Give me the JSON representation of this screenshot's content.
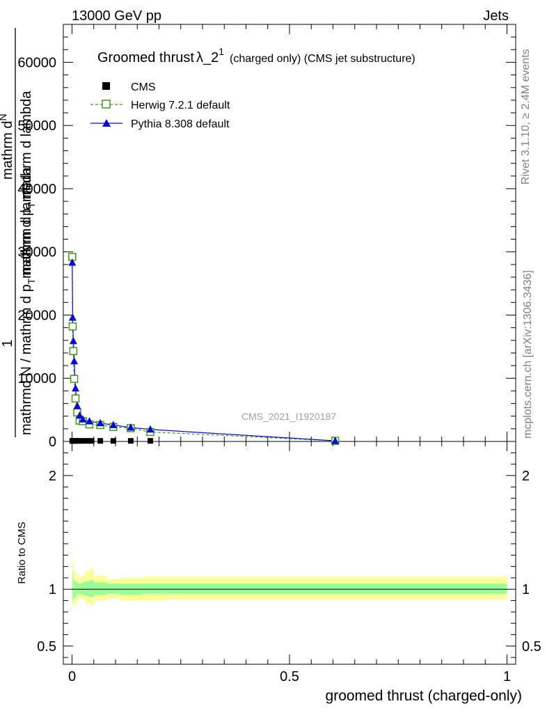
{
  "header": {
    "left": "13000 GeV pp",
    "right": "Jets"
  },
  "side_text": {
    "rivet": "Rivet 3.1.10, ≥ 2.4M events",
    "mcplots": "mcplots.cern.ch [arXiv:1306.3436]"
  },
  "watermark": "CMS_2021_I1920187",
  "main_title": {
    "prefix": "Groomed thrust",
    "lambda": "λ_2",
    "sup": "1",
    "suffix": "(charged only) (CMS jet substructure)"
  },
  "y_axis_upper": {
    "numerator_1": "1",
    "fraction_top": "mathrm d",
    "sup_N": "N",
    "denominator": "mathrm d p",
    "sub_T": "T",
    "denominator_rest": "mathrm d lambda",
    "left_part": "mathrmd N / mathrm d p",
    "left_sub": "T",
    "left_rest": "mathrm d lambda"
  },
  "y_axis_lower_label": "Ratio to CMS",
  "x_axis_label": "groomed thrust (charged-only)",
  "colors": {
    "cms": "#000000",
    "herwig": "#3a9a1a",
    "pythia": "#0a0ad6",
    "band_outer": "#ffff99",
    "band_inner": "#99ff99"
  },
  "chart_data": [
    {
      "type": "line",
      "panel": "main",
      "xlim": [
        -0.02,
        1.02
      ],
      "ylim": [
        0,
        66000
      ],
      "y_ticks": [
        0,
        10000,
        20000,
        30000,
        40000,
        50000,
        60000
      ],
      "y_tick_labels": [
        "0",
        "10000",
        "20000",
        "30000",
        "40000",
        "50000",
        "60000"
      ],
      "legend_position": "top-left",
      "series": [
        {
          "name": "CMS",
          "marker": "filled-square",
          "x": [
            0.0005,
            0.0015,
            0.003,
            0.005,
            0.008,
            0.012,
            0.0175,
            0.025,
            0.035,
            0.045,
            0.065,
            0.095,
            0.135,
            0.18
          ],
          "y": [
            90,
            90,
            90,
            90,
            90,
            90,
            90,
            90,
            90,
            90,
            90,
            90,
            90,
            90
          ]
        },
        {
          "name": "Herwig 7.2.1 default",
          "marker": "open-square",
          "line": "dashed",
          "x": [
            0.0005,
            0.0015,
            0.003,
            0.005,
            0.008,
            0.012,
            0.0175,
            0.025,
            0.04,
            0.065,
            0.095,
            0.135,
            0.18,
            0.605
          ],
          "y": [
            29200,
            18200,
            14300,
            9900,
            6800,
            4600,
            3300,
            3200,
            2700,
            2600,
            2300,
            2100,
            1500,
            100
          ]
        },
        {
          "name": "Pythia 8.308 default",
          "marker": "filled-triangle",
          "line": "solid",
          "x": [
            0.0005,
            0.0015,
            0.003,
            0.005,
            0.008,
            0.012,
            0.0175,
            0.025,
            0.04,
            0.065,
            0.095,
            0.135,
            0.18,
            0.605
          ],
          "y": [
            28300,
            19600,
            15900,
            12700,
            8400,
            5600,
            4100,
            3500,
            3200,
            2900,
            2600,
            2200,
            1900,
            100
          ]
        }
      ]
    },
    {
      "type": "area",
      "panel": "ratio",
      "xlim": [
        -0.02,
        1.02
      ],
      "ylim": [
        0.34,
        2.3
      ],
      "y_ticks": [
        0.5,
        1,
        2
      ],
      "y_tick_labels": [
        "0.5",
        "1",
        "2"
      ],
      "x_ticks": [
        0,
        0.5,
        1
      ],
      "x_tick_labels": [
        "0",
        "0.5",
        "1"
      ],
      "reference_line": 1,
      "bins": [
        0,
        0.001,
        0.002,
        0.004,
        0.006,
        0.01,
        0.014,
        0.021,
        0.03,
        0.04,
        0.05,
        0.08,
        0.11,
        0.16,
        0.21,
        1.0
      ],
      "band_outer_low": [
        0.92,
        0.8,
        0.85,
        0.86,
        0.86,
        0.9,
        0.92,
        0.91,
        0.88,
        0.86,
        0.9,
        0.92,
        0.9,
        0.9,
        0.91
      ],
      "band_outer_high": [
        1.08,
        1.3,
        1.21,
        1.17,
        1.15,
        1.13,
        1.1,
        1.12,
        1.16,
        1.18,
        1.12,
        1.09,
        1.1,
        1.11,
        1.11
      ],
      "band_inner_low": [
        0.96,
        0.88,
        0.91,
        0.92,
        0.93,
        0.95,
        0.96,
        0.95,
        0.94,
        0.93,
        0.95,
        0.96,
        0.95,
        0.96,
        0.96
      ],
      "band_inner_high": [
        1.04,
        1.16,
        1.1,
        1.08,
        1.07,
        1.06,
        1.05,
        1.06,
        1.07,
        1.08,
        1.06,
        1.05,
        1.05,
        1.05,
        1.05
      ]
    }
  ]
}
